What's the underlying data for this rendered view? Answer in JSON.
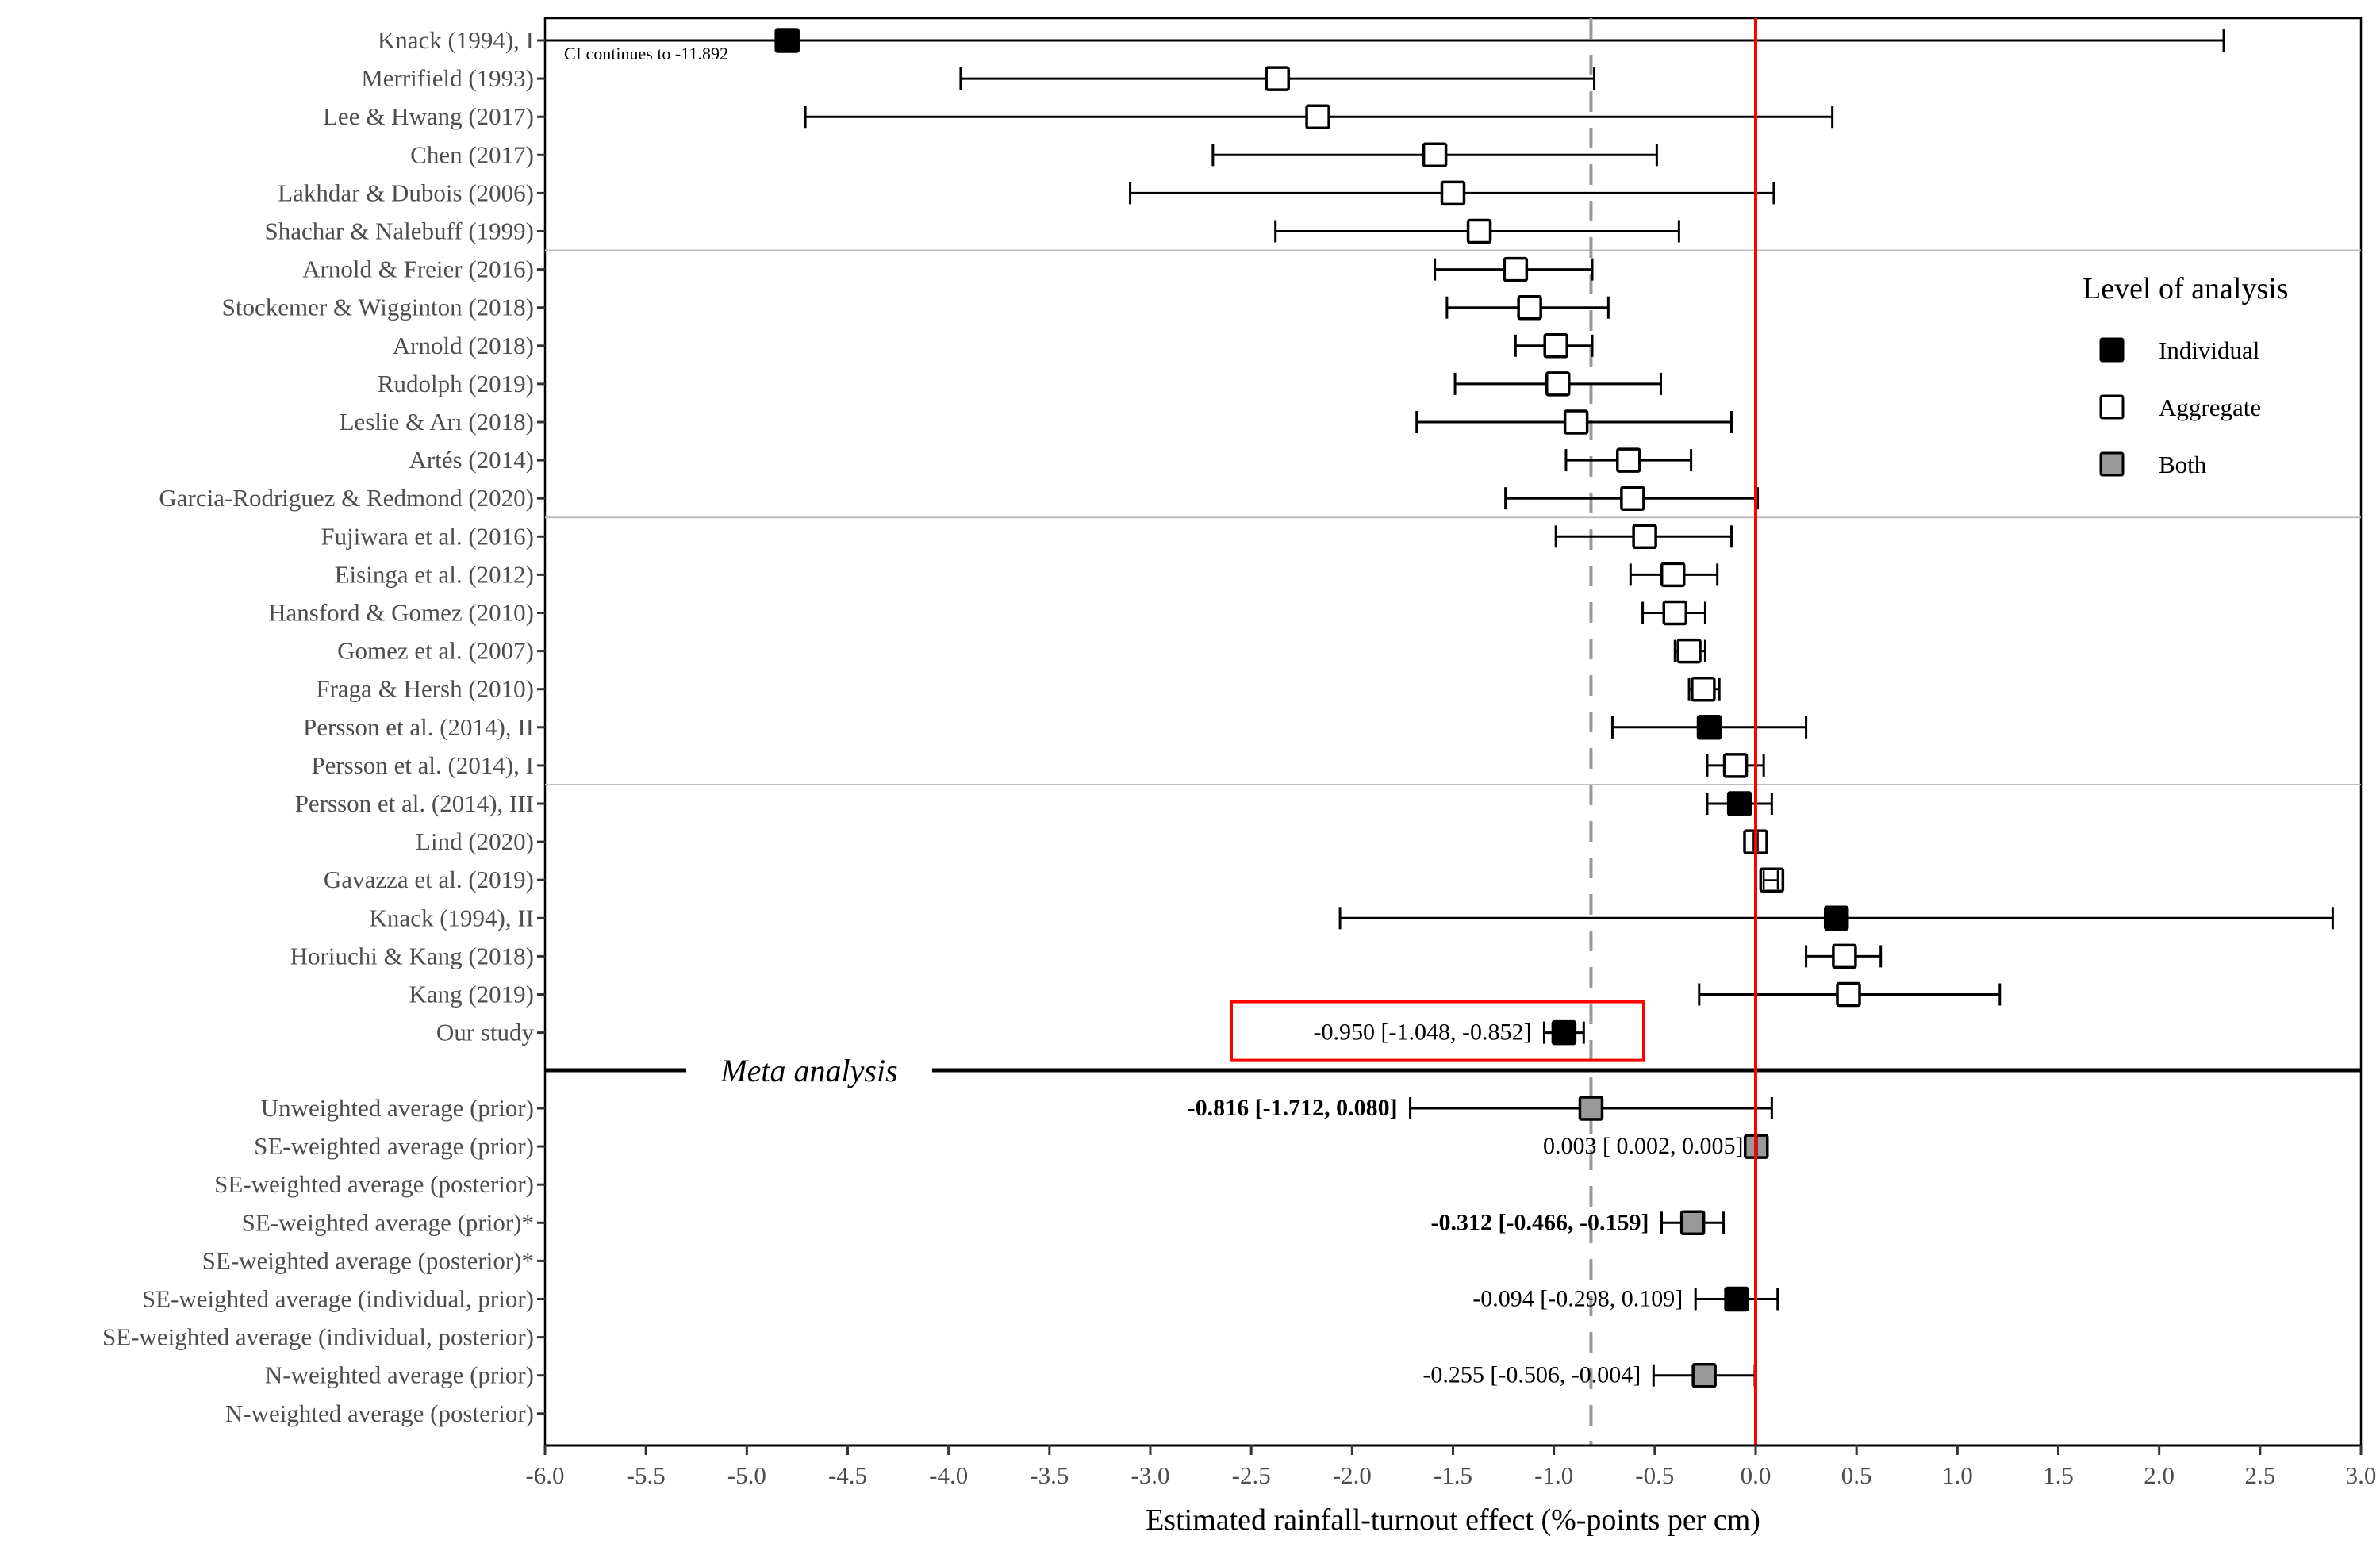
{
  "chart_data": {
    "type": "forest",
    "xlabel": "Estimated rainfall-turnout effect (%-points per cm)",
    "xlim": [
      -6.0,
      3.0
    ],
    "xticks": [
      "-6.0",
      "-5.5",
      "-5.0",
      "-4.5",
      "-4.0",
      "-3.5",
      "-3.0",
      "-2.5",
      "-2.0",
      "-1.5",
      "-1.0",
      "-0.5",
      "0.0",
      "0.5",
      "1.0",
      "1.5",
      "2.0",
      "2.5",
      "3.0"
    ],
    "xtick_values": [
      -6.0,
      -5.5,
      -5.0,
      -4.5,
      -4.0,
      -3.5,
      -3.0,
      -2.5,
      -2.0,
      -1.5,
      -1.0,
      -0.5,
      0.0,
      0.5,
      1.0,
      1.5,
      2.0,
      2.5,
      3.0
    ],
    "reference_line": 0.0,
    "dashed_line": -0.816,
    "colors": {
      "individual": "#000000",
      "aggregate": "#ffffff",
      "both": "#999999",
      "reference": "#ff0000",
      "dashed": "#999999",
      "highlight": "#ff0000"
    },
    "legend": {
      "title": "Level of analysis",
      "position": "right",
      "entries": [
        {
          "label": "Individual",
          "level": "individual"
        },
        {
          "label": "Aggregate",
          "level": "aggregate"
        },
        {
          "label": "Both",
          "level": "both"
        }
      ]
    },
    "group_separators_after": [
      5,
      12,
      19
    ],
    "studies": [
      {
        "label": "Knack (1994), I",
        "est": -4.8,
        "lo": -11.892,
        "hi": 2.32,
        "level": "individual",
        "note": "CI continues to -11.892"
      },
      {
        "label": "Merrifield (1993)",
        "est": -2.37,
        "lo": -3.94,
        "hi": -0.8,
        "level": "aggregate"
      },
      {
        "label": "Lee & Hwang (2017)",
        "est": -2.17,
        "lo": -4.71,
        "hi": 0.38,
        "level": "aggregate"
      },
      {
        "label": "Chen (2017)",
        "est": -1.59,
        "lo": -2.69,
        "hi": -0.49,
        "level": "aggregate"
      },
      {
        "label": "Lakhdar & Dubois (2006)",
        "est": -1.5,
        "lo": -3.1,
        "hi": 0.09,
        "level": "aggregate"
      },
      {
        "label": "Shachar & Nalebuff (1999)",
        "est": -1.37,
        "lo": -2.38,
        "hi": -0.38,
        "level": "aggregate"
      },
      {
        "label": "Arnold & Freier (2016)",
        "est": -1.19,
        "lo": -1.59,
        "hi": -0.81,
        "level": "aggregate"
      },
      {
        "label": "Stockemer & Wigginton (2018)",
        "est": -1.12,
        "lo": -1.53,
        "hi": -0.73,
        "level": "aggregate"
      },
      {
        "label": "Arnold (2018)",
        "est": -0.99,
        "lo": -1.19,
        "hi": -0.81,
        "level": "aggregate"
      },
      {
        "label": "Rudolph (2019)",
        "est": -0.98,
        "lo": -1.49,
        "hi": -0.47,
        "level": "aggregate"
      },
      {
        "label": "Leslie & Arı (2018)",
        "est": -0.89,
        "lo": -1.68,
        "hi": -0.12,
        "level": "aggregate"
      },
      {
        "label": "Artés (2014)",
        "est": -0.63,
        "lo": -0.94,
        "hi": -0.32,
        "level": "aggregate"
      },
      {
        "label": "Garcia-Rodriguez & Redmond (2020)",
        "est": -0.61,
        "lo": -1.24,
        "hi": 0.01,
        "level": "aggregate"
      },
      {
        "label": "Fujiwara et al. (2016)",
        "est": -0.55,
        "lo": -0.99,
        "hi": -0.12,
        "level": "aggregate"
      },
      {
        "label": "Eisinga et al. (2012)",
        "est": -0.41,
        "lo": -0.62,
        "hi": -0.19,
        "level": "aggregate"
      },
      {
        "label": "Hansford & Gomez (2010)",
        "est": -0.4,
        "lo": -0.56,
        "hi": -0.25,
        "level": "aggregate"
      },
      {
        "label": "Gomez et al. (2007)",
        "est": -0.33,
        "lo": -0.4,
        "hi": -0.25,
        "level": "aggregate"
      },
      {
        "label": "Fraga & Hersh (2010)",
        "est": -0.26,
        "lo": -0.33,
        "hi": -0.18,
        "level": "aggregate"
      },
      {
        "label": "Persson et al. (2014), II",
        "est": -0.23,
        "lo": -0.71,
        "hi": 0.25,
        "level": "individual"
      },
      {
        "label": "Persson et al. (2014), I",
        "est": -0.1,
        "lo": -0.24,
        "hi": 0.04,
        "level": "aggregate"
      },
      {
        "label": "Persson et al. (2014), III",
        "est": -0.08,
        "lo": -0.24,
        "hi": 0.08,
        "level": "individual"
      },
      {
        "label": "Lind (2020)",
        "est": 0.0,
        "lo": -0.01,
        "hi": 0.01,
        "level": "aggregate"
      },
      {
        "label": "Gavazza et al. (2019)",
        "est": 0.08,
        "lo": 0.04,
        "hi": 0.11,
        "level": "aggregate"
      },
      {
        "label": "Knack (1994), II",
        "est": 0.4,
        "lo": -2.06,
        "hi": 2.86,
        "level": "individual"
      },
      {
        "label": "Horiuchi & Kang (2018)",
        "est": 0.44,
        "lo": 0.25,
        "hi": 0.62,
        "level": "aggregate"
      },
      {
        "label": "Kang (2019)",
        "est": 0.46,
        "lo": -0.28,
        "hi": 1.21,
        "level": "aggregate"
      },
      {
        "label": "Our study",
        "est": -0.95,
        "lo": -1.048,
        "hi": -0.852,
        "level": "individual",
        "text": "-0.950 [-1.048, -0.852]",
        "highlight": true
      }
    ],
    "meta_header": "Meta analysis",
    "meta": [
      {
        "label": "Unweighted average (prior)",
        "est": -0.816,
        "lo": -1.712,
        "hi": 0.08,
        "level": "both",
        "text": "-0.816 [-1.712,  0.080]",
        "bold": true
      },
      {
        "label": "SE-weighted average (prior)",
        "est": 0.003,
        "lo": 0.002,
        "hi": 0.005,
        "level": "both",
        "text": "0.003 [ 0.002,  0.005]",
        "bold": false
      },
      {
        "label": "SE-weighted average (posterior)",
        "est": null,
        "lo": null,
        "hi": null,
        "level": null,
        "text": null
      },
      {
        "label": "SE-weighted average (prior)*",
        "est": -0.312,
        "lo": -0.466,
        "hi": -0.159,
        "level": "both",
        "text": "-0.312 [-0.466, -0.159]",
        "bold": true
      },
      {
        "label": "SE-weighted average (posterior)*",
        "est": null,
        "lo": null,
        "hi": null,
        "level": null,
        "text": null
      },
      {
        "label": "SE-weighted average (individual, prior)",
        "est": -0.094,
        "lo": -0.298,
        "hi": 0.109,
        "level": "individual",
        "text": "-0.094 [-0.298,  0.109]",
        "bold": false
      },
      {
        "label": "SE-weighted average (individual, posterior)",
        "est": null,
        "lo": null,
        "hi": null,
        "level": null,
        "text": null
      },
      {
        "label": "N-weighted average (prior)",
        "est": -0.255,
        "lo": -0.506,
        "hi": -0.004,
        "level": "both",
        "text": "-0.255 [-0.506, -0.004]",
        "bold": false
      },
      {
        "label": "N-weighted average (posterior)",
        "est": null,
        "lo": null,
        "hi": null,
        "level": null,
        "text": null
      }
    ]
  }
}
